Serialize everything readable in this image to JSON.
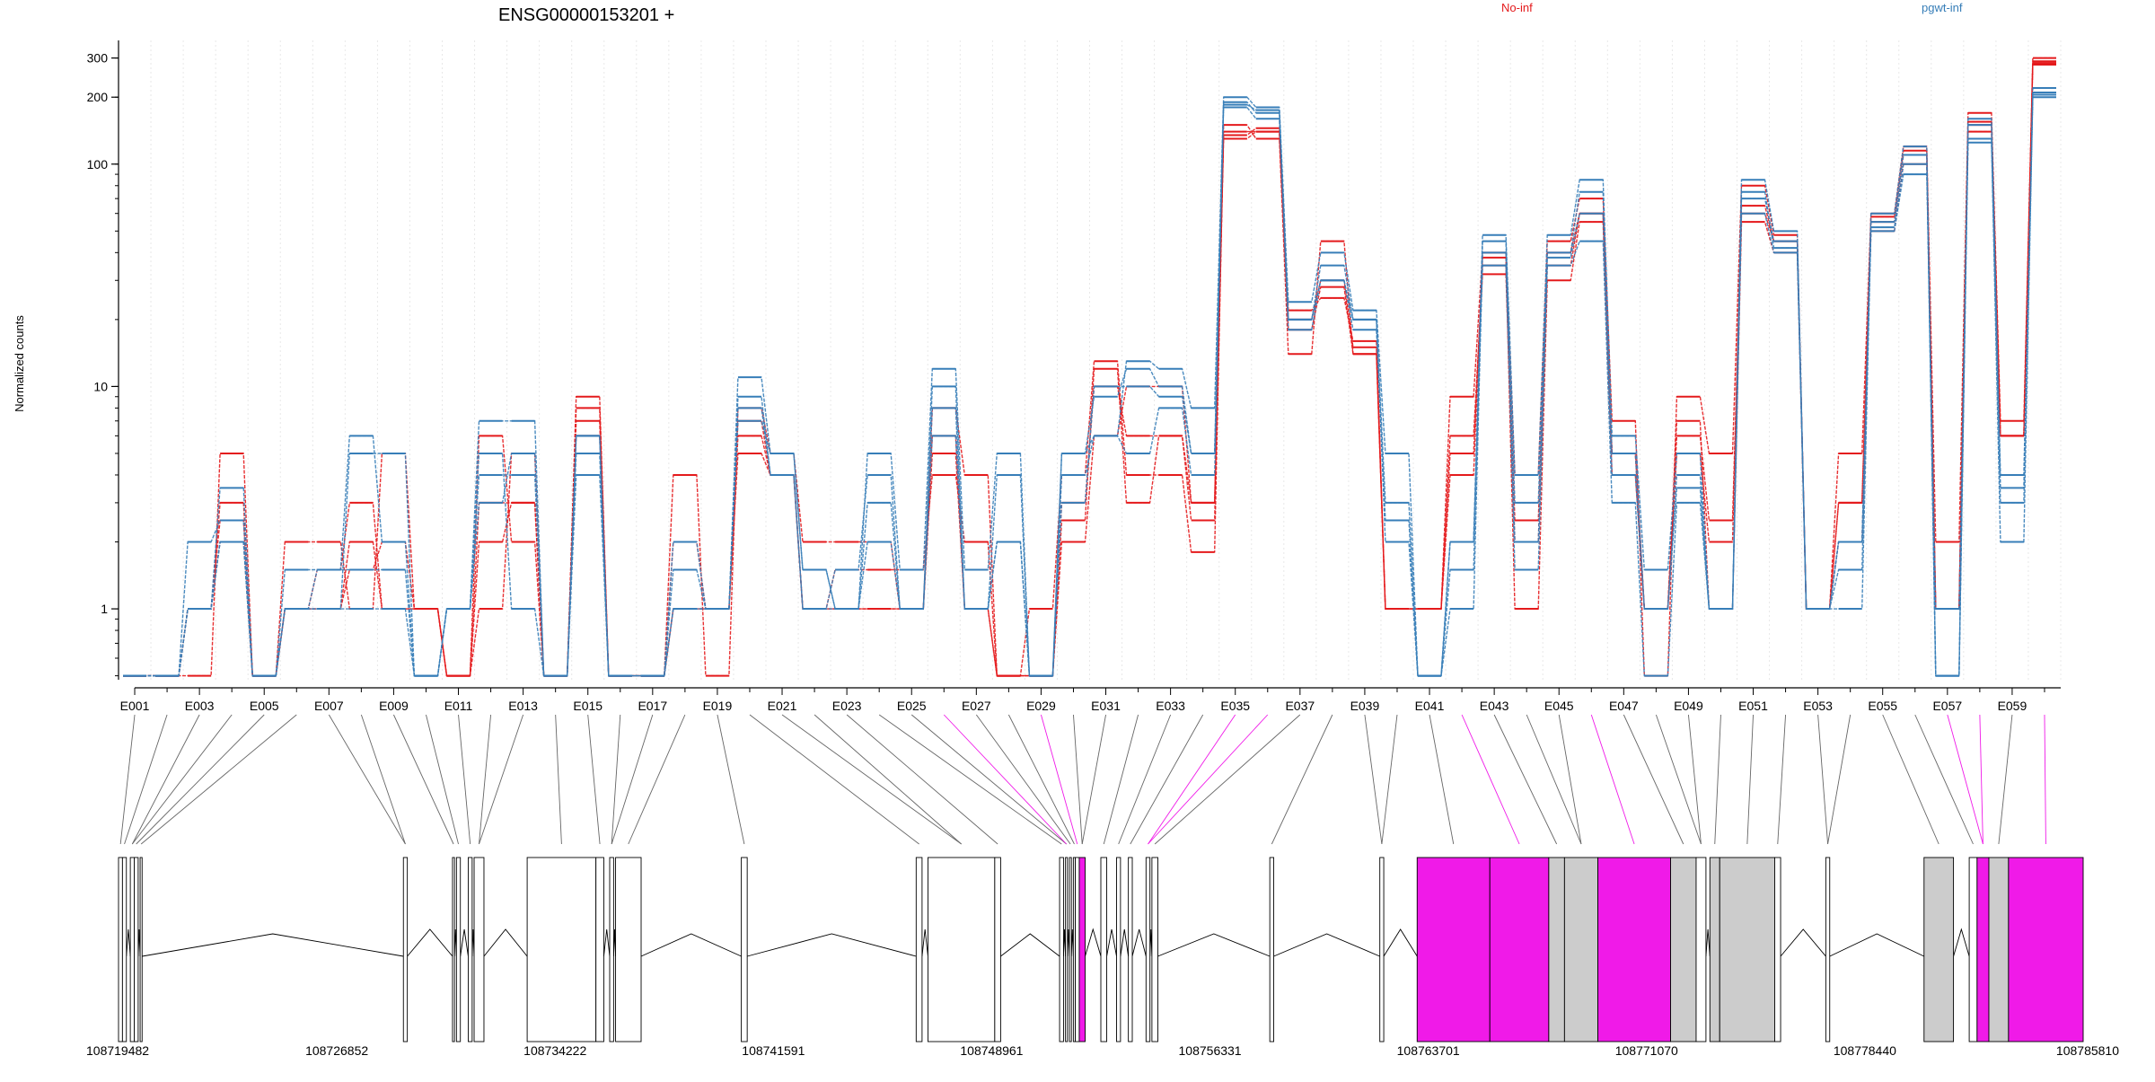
{
  "chart_data": {
    "type": "line",
    "title": "ENSG00000153201 +",
    "ylabel": "Normalized counts",
    "xlabel": "",
    "yscale": "log",
    "ylim": [
      0.48,
      360
    ],
    "y_ticks": [
      300,
      200,
      100,
      10,
      1
    ],
    "y_tick_labels": [
      "300",
      "200",
      "100",
      "10",
      "1"
    ],
    "categories": [
      "E001",
      "E002",
      "E003",
      "E004",
      "E005",
      "E006",
      "E007",
      "E008",
      "E009",
      "E010",
      "E011",
      "E012",
      "E013",
      "E014",
      "E015",
      "E016",
      "E017",
      "E018",
      "E019",
      "E020",
      "E021",
      "E022",
      "E023",
      "E024",
      "E025",
      "E026",
      "E027",
      "E028",
      "E029",
      "E030",
      "E031",
      "E032",
      "E033",
      "E034",
      "E035",
      "E036",
      "E037",
      "E038",
      "E039",
      "E040",
      "E041",
      "E042",
      "E043",
      "E044",
      "E045",
      "E046",
      "E047",
      "E048",
      "E049",
      "E050",
      "E051",
      "E052",
      "E053",
      "E054",
      "E055",
      "E056",
      "E057",
      "E058",
      "E059",
      "E060"
    ],
    "x_tick_labels": [
      "E001",
      "E003",
      "E005",
      "E007",
      "E009",
      "E011",
      "E013",
      "E015",
      "E017",
      "E019",
      "E021",
      "E023",
      "E025",
      "E027",
      "E029",
      "E031",
      "E033",
      "E035",
      "E037",
      "E039",
      "E041",
      "E043",
      "E045",
      "E047",
      "E049",
      "E051",
      "E053",
      "E055",
      "E057",
      "E059"
    ],
    "legend": [
      "No-inf",
      "pgwt-inf"
    ],
    "legend_placement": "top-right",
    "grid": true,
    "colors": {
      "No-inf": "#e41a1c",
      "pgwt-inf": "#377eb8",
      "highlight_exon": "#f01ae8",
      "exon_fill": "#cccccc",
      "axis": "#000000"
    },
    "genomic_axis_labels": [
      "108719482",
      "108726852",
      "108734222",
      "108741591",
      "108748961",
      "108756331",
      "108763701",
      "108771070",
      "108778440",
      "108785810"
    ],
    "genomic_range": [
      108719482,
      108785810
    ],
    "highlighted_exons": [
      "E026",
      "E029",
      "E035",
      "E036",
      "E042",
      "E046",
      "E057",
      "E058",
      "E060"
    ],
    "series": [
      {
        "name": "No-inf",
        "values": [
          0.5,
          0.5,
          1.0,
          3.0,
          0.5,
          1.0,
          1.0,
          1.5,
          2.0,
          1.0,
          0.5,
          2.0,
          3.0,
          0.5,
          8.0,
          0.5,
          0.5,
          1.0,
          1.0,
          6.0,
          4.0,
          1.0,
          1.0,
          1.0,
          1.0,
          6.0,
          1.0,
          0.5,
          0.5,
          3.0,
          10.0,
          6.0,
          6.0,
          3.0,
          140,
          140,
          20,
          30,
          15,
          1.0,
          1.0,
          5.0,
          35,
          2.5,
          40,
          60,
          5.0,
          1.0,
          6.0,
          2.5,
          60,
          45,
          1.0,
          3.0,
          55,
          110,
          1.0,
          150,
          6.0,
          290
        ]
      },
      {
        "name": "No-inf",
        "values": [
          0.5,
          0.5,
          0.5,
          5.0,
          0.5,
          2.0,
          2.0,
          1.0,
          5.0,
          1.0,
          0.5,
          1.0,
          5.0,
          0.5,
          9.0,
          0.5,
          0.5,
          4.0,
          0.5,
          8.0,
          5.0,
          2.0,
          2.0,
          2.0,
          1.0,
          8.0,
          4.0,
          0.5,
          1.0,
          4.0,
          13.0,
          4.0,
          4.0,
          1.8,
          150,
          130,
          14,
          45,
          14,
          1.0,
          1.0,
          9.0,
          40,
          4.0,
          45,
          70,
          7.0,
          0.5,
          9.0,
          5.0,
          80,
          48,
          1.0,
          5.0,
          60,
          120,
          2.0,
          170,
          7.0,
          300
        ]
      },
      {
        "name": "No-inf",
        "values": [
          0.5,
          0.5,
          1.0,
          2.0,
          0.5,
          1.0,
          1.5,
          3.0,
          1.0,
          1.0,
          0.5,
          6.0,
          2.0,
          0.5,
          6.0,
          0.5,
          0.5,
          2.0,
          1.0,
          7.0,
          4.0,
          1.0,
          1.5,
          1.5,
          1.5,
          4.0,
          2.0,
          0.5,
          0.5,
          2.0,
          6.0,
          10.0,
          10.0,
          3.0,
          135,
          145,
          22,
          25,
          16,
          1.0,
          1.0,
          4.0,
          38,
          1.0,
          30,
          55,
          4.0,
          1.0,
          7.0,
          1.0,
          55,
          40,
          1.0,
          2.0,
          50,
          100,
          1.0,
          140,
          6.0,
          280
        ]
      },
      {
        "name": "No-inf",
        "values": [
          0.5,
          0.5,
          1.0,
          2.5,
          0.5,
          1.0,
          1.0,
          2.0,
          1.0,
          1.0,
          0.5,
          3.0,
          3.0,
          0.5,
          7.0,
          0.5,
          0.5,
          1.0,
          1.0,
          5.0,
          4.0,
          1.0,
          1.0,
          1.0,
          1.0,
          5.0,
          1.0,
          0.5,
          0.5,
          2.5,
          12.0,
          3.0,
          6.0,
          2.5,
          130,
          140,
          18,
          28,
          14,
          1.0,
          1.0,
          6.0,
          32,
          2.0,
          35,
          60,
          5.0,
          1.0,
          5.0,
          2.0,
          65,
          45,
          1.0,
          3.0,
          58,
          115,
          1.0,
          155,
          6.0,
          285
        ]
      },
      {
        "name": "pgwt-inf",
        "values": [
          0.5,
          0.5,
          2.0,
          2.5,
          0.5,
          1.0,
          1.5,
          6.0,
          2.0,
          0.5,
          1.0,
          7.0,
          7.0,
          0.5,
          6.0,
          0.5,
          0.5,
          2.0,
          1.0,
          11.0,
          5.0,
          1.5,
          1.0,
          5.0,
          1.5,
          12.0,
          1.5,
          5.0,
          0.5,
          5.0,
          6.0,
          13.0,
          12.0,
          8.0,
          200,
          180,
          24,
          40,
          22,
          5.0,
          0.5,
          2.0,
          48,
          4.0,
          48,
          85,
          6.0,
          1.5,
          5.0,
          1.0,
          85,
          50,
          1.0,
          2.0,
          60,
          120,
          0.5,
          160,
          4.0,
          220
        ]
      },
      {
        "name": "pgwt-inf",
        "values": [
          0.5,
          0.5,
          1.0,
          3.5,
          0.5,
          1.0,
          1.0,
          5.0,
          5.0,
          0.5,
          1.0,
          4.0,
          4.0,
          0.5,
          5.0,
          0.5,
          0.5,
          1.5,
          1.0,
          8.0,
          4.0,
          1.0,
          1.5,
          4.0,
          1.0,
          10.0,
          1.0,
          4.0,
          0.5,
          5.0,
          9.0,
          12.0,
          10.0,
          5.0,
          190,
          170,
          20,
          35,
          20,
          3.0,
          0.5,
          1.5,
          45,
          3.0,
          40,
          75,
          5.0,
          1.0,
          4.0,
          1.0,
          70,
          45,
          1.0,
          1.5,
          55,
          110,
          0.5,
          150,
          3.5,
          210
        ]
      },
      {
        "name": "pgwt-inf",
        "values": [
          0.5,
          0.5,
          1.0,
          2.0,
          0.5,
          1.5,
          1.5,
          1.5,
          1.5,
          0.5,
          1.0,
          5.0,
          1.0,
          0.5,
          4.0,
          0.5,
          0.5,
          1.0,
          1.0,
          7.0,
          5.0,
          1.5,
          1.0,
          3.0,
          1.0,
          6.0,
          1.0,
          2.0,
          0.5,
          4.0,
          6.0,
          5.0,
          8.0,
          4.0,
          180,
          160,
          18,
          30,
          18,
          2.5,
          0.5,
          2.0,
          35,
          2.0,
          35,
          45,
          3.0,
          0.5,
          3.0,
          1.0,
          60,
          40,
          1.0,
          2.0,
          50,
          90,
          1.0,
          130,
          3.0,
          200
        ]
      },
      {
        "name": "pgwt-inf",
        "values": [
          0.5,
          0.5,
          1.0,
          2.0,
          0.5,
          1.0,
          1.0,
          1.0,
          1.0,
          0.5,
          1.0,
          3.0,
          5.0,
          0.5,
          6.0,
          0.5,
          0.5,
          1.0,
          1.0,
          9.0,
          4.0,
          1.0,
          1.0,
          2.0,
          1.0,
          8.0,
          1.0,
          2.0,
          0.5,
          3.0,
          10.0,
          10.0,
          9.0,
          5.0,
          185,
          175,
          20,
          30,
          20,
          2.0,
          0.5,
          1.0,
          40,
          1.5,
          38,
          60,
          4.0,
          1.0,
          3.5,
          1.0,
          75,
          42,
          1.0,
          1.0,
          52,
          100,
          0.5,
          125,
          2.0,
          205
        ]
      }
    ]
  }
}
